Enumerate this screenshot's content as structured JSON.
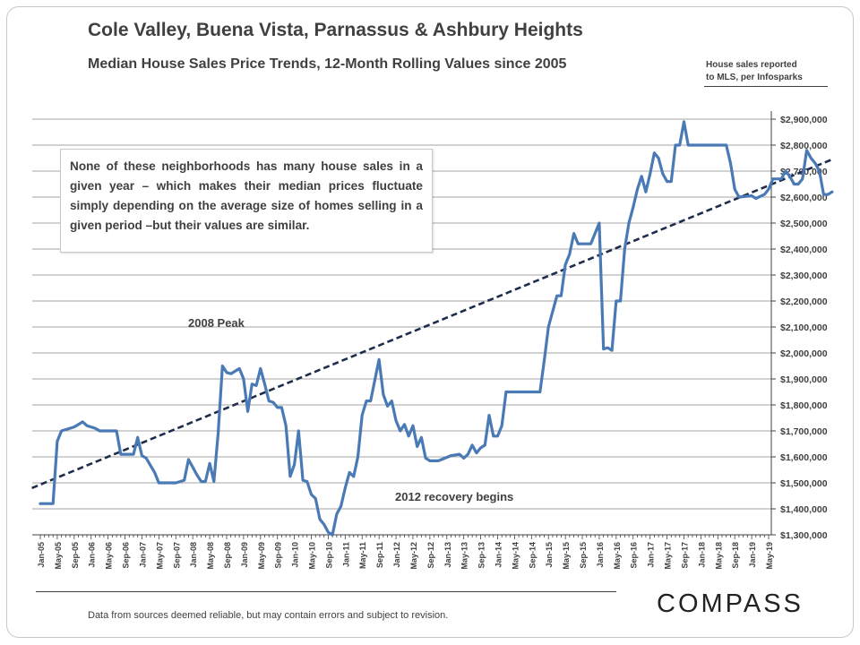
{
  "header": {
    "title": "Cole Valley, Buena Vista, Parnassus & Ashbury Heights",
    "subtitle": "Median House Sales Price Trends, 12-Month Rolling Values since 2005",
    "source_line1": "House sales reported",
    "source_line2": "to MLS, per Infosparks"
  },
  "note_box": {
    "text": "None of these neighborhoods has many house sales in a given year – which makes their median prices fluctuate simply depending on the average size of homes selling in a given period –but their values are similar."
  },
  "footer": {
    "disclaimer": "Data from sources deemed reliable, but may contain errors and subject to revision.",
    "logo": "COMPASS"
  },
  "colors": {
    "series": "#4a7ab5",
    "trend": "#1f2d4d",
    "grid": "#a6a6a6",
    "text": "#404040"
  },
  "chart_data": {
    "type": "line",
    "title": "Median House Sales Price Trends, 12-Month Rolling Values since 2005",
    "xlabel": "",
    "ylabel": "",
    "ylim": [
      1300000,
      2900000
    ],
    "y_ticks": [
      1300000,
      1400000,
      1500000,
      1600000,
      1700000,
      1800000,
      1900000,
      2000000,
      2100000,
      2200000,
      2300000,
      2400000,
      2500000,
      2600000,
      2700000,
      2800000,
      2900000
    ],
    "y_tick_labels": [
      "$1,300,000",
      "$1,400,000",
      "$1,500,000",
      "$1,600,000",
      "$1,700,000",
      "$1,800,000",
      "$1,900,000",
      "$2,000,000",
      "$2,100,000",
      "$2,200,000",
      "$2,300,000",
      "$2,400,000",
      "$2,500,000",
      "$2,600,000",
      "$2,700,000",
      "$2,800,000",
      "$2,900,000"
    ],
    "x_tick_labels": [
      "Jan-05",
      "May-05",
      "Sep-05",
      "Jan-06",
      "May-06",
      "Sep-06",
      "Jan-07",
      "May-07",
      "Sep-07",
      "Jan-08",
      "May-08",
      "Sep-08",
      "Jan-09",
      "May-09",
      "Sep-09",
      "Jan-10",
      "May-10",
      "Sep-10",
      "Jan-11",
      "May-11",
      "Sep-11",
      "Jan-12",
      "May-12",
      "Sep-12",
      "Jan-13",
      "May-13",
      "Sep-13",
      "Jan-14",
      "May-14",
      "Sep-14",
      "Jan-15",
      "May-15",
      "Sep-15",
      "Jan-16",
      "May-16",
      "Sep-16",
      "Jan-17",
      "May-17",
      "Sep-17",
      "Jan-18",
      "May-18",
      "Sep-18",
      "Jan-19",
      "May-19"
    ],
    "months_per_tick": 4,
    "series": [
      {
        "name": "Median House Sales Price (12-month rolling)",
        "points": [
          [
            0,
            1420000
          ],
          [
            3,
            1420000
          ],
          [
            4,
            1660000
          ],
          [
            5,
            1700000
          ],
          [
            7,
            1710000
          ],
          [
            8,
            1715000
          ],
          [
            10,
            1735000
          ],
          [
            11,
            1720000
          ],
          [
            13,
            1710000
          ],
          [
            14,
            1700000
          ],
          [
            18,
            1700000
          ],
          [
            19,
            1610000
          ],
          [
            22,
            1610000
          ],
          [
            23,
            1675000
          ],
          [
            24,
            1605000
          ],
          [
            25,
            1595000
          ],
          [
            27,
            1540000
          ],
          [
            28,
            1500000
          ],
          [
            32,
            1500000
          ],
          [
            34,
            1510000
          ],
          [
            35,
            1590000
          ],
          [
            36,
            1560000
          ],
          [
            37,
            1530000
          ],
          [
            38,
            1505000
          ],
          [
            39,
            1505000
          ],
          [
            40,
            1575000
          ],
          [
            41,
            1505000
          ],
          [
            42,
            1690000
          ],
          [
            43,
            1950000
          ],
          [
            44,
            1925000
          ],
          [
            45,
            1920000
          ],
          [
            47,
            1940000
          ],
          [
            48,
            1900000
          ],
          [
            49,
            1775000
          ],
          [
            50,
            1880000
          ],
          [
            51,
            1875000
          ],
          [
            52,
            1940000
          ],
          [
            53,
            1880000
          ],
          [
            54,
            1815000
          ],
          [
            55,
            1810000
          ],
          [
            56,
            1790000
          ],
          [
            57,
            1790000
          ],
          [
            58,
            1720000
          ],
          [
            59,
            1525000
          ],
          [
            60,
            1570000
          ],
          [
            61,
            1700000
          ],
          [
            62,
            1510000
          ],
          [
            63,
            1505000
          ],
          [
            64,
            1455000
          ],
          [
            65,
            1440000
          ],
          [
            66,
            1360000
          ],
          [
            67,
            1340000
          ],
          [
            68,
            1310000
          ],
          [
            69,
            1300000
          ],
          [
            70,
            1380000
          ],
          [
            71,
            1410000
          ],
          [
            72,
            1480000
          ],
          [
            73,
            1540000
          ],
          [
            74,
            1525000
          ],
          [
            75,
            1600000
          ],
          [
            76,
            1760000
          ],
          [
            77,
            1815000
          ],
          [
            78,
            1815000
          ],
          [
            80,
            1975000
          ],
          [
            81,
            1840000
          ],
          [
            82,
            1795000
          ],
          [
            83,
            1815000
          ],
          [
            84,
            1740000
          ],
          [
            85,
            1700000
          ],
          [
            86,
            1725000
          ],
          [
            87,
            1680000
          ],
          [
            88,
            1720000
          ],
          [
            89,
            1640000
          ],
          [
            90,
            1675000
          ],
          [
            91,
            1595000
          ],
          [
            92,
            1585000
          ],
          [
            94,
            1585000
          ],
          [
            97,
            1605000
          ],
          [
            99,
            1610000
          ],
          [
            100,
            1595000
          ],
          [
            101,
            1610000
          ],
          [
            102,
            1645000
          ],
          [
            103,
            1615000
          ],
          [
            104,
            1635000
          ],
          [
            105,
            1645000
          ],
          [
            106,
            1760000
          ],
          [
            107,
            1680000
          ],
          [
            108,
            1680000
          ],
          [
            109,
            1720000
          ],
          [
            110,
            1850000
          ],
          [
            118,
            1850000
          ],
          [
            119,
            1970000
          ],
          [
            120,
            2100000
          ],
          [
            122,
            2220000
          ],
          [
            123,
            2220000
          ],
          [
            124,
            2340000
          ],
          [
            125,
            2380000
          ],
          [
            126,
            2460000
          ],
          [
            127,
            2420000
          ],
          [
            130,
            2420000
          ],
          [
            131,
            2460000
          ],
          [
            132,
            2500000
          ],
          [
            133,
            2015000
          ],
          [
            134,
            2020000
          ],
          [
            135,
            2010000
          ],
          [
            136,
            2200000
          ],
          [
            137,
            2200000
          ],
          [
            138,
            2400000
          ],
          [
            139,
            2500000
          ],
          [
            140,
            2560000
          ],
          [
            141,
            2630000
          ],
          [
            142,
            2680000
          ],
          [
            143,
            2620000
          ],
          [
            144,
            2690000
          ],
          [
            145,
            2770000
          ],
          [
            146,
            2750000
          ],
          [
            147,
            2690000
          ],
          [
            148,
            2660000
          ],
          [
            149,
            2660000
          ],
          [
            150,
            2800000
          ],
          [
            151,
            2800000
          ],
          [
            152,
            2890000
          ],
          [
            153,
            2800000
          ],
          [
            162,
            2800000
          ],
          [
            163,
            2730000
          ],
          [
            164,
            2630000
          ],
          [
            165,
            2600000
          ],
          [
            168,
            2605000
          ],
          [
            169,
            2595000
          ],
          [
            171,
            2610000
          ],
          [
            172,
            2630000
          ],
          [
            173,
            2670000
          ],
          [
            175,
            2670000
          ],
          [
            176,
            2700000
          ],
          [
            177,
            2680000
          ],
          [
            178,
            2650000
          ],
          [
            179,
            2650000
          ],
          [
            180,
            2670000
          ],
          [
            181,
            2780000
          ],
          [
            182,
            2750000
          ],
          [
            183,
            2730000
          ],
          [
            184,
            2700000
          ],
          [
            185,
            2610000
          ],
          [
            186,
            2610000
          ],
          [
            187,
            2620000
          ]
        ]
      }
    ],
    "trendline": {
      "name": "Trend",
      "start": [
        -2,
        1480000
      ],
      "end": [
        187,
        2745000
      ]
    },
    "annotations": [
      "2008 Peak",
      "2012 recovery begins"
    ]
  }
}
